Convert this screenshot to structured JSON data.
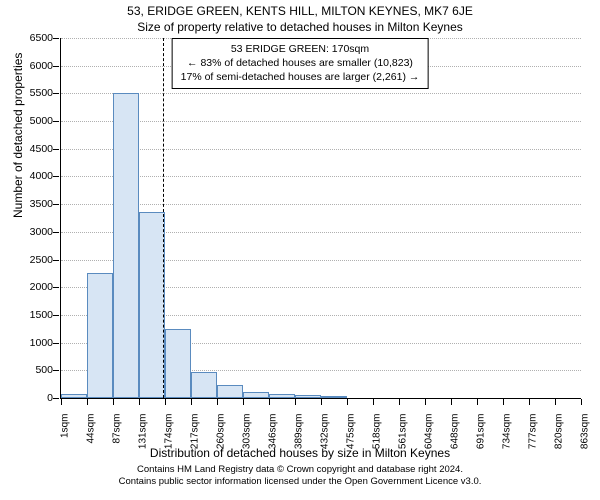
{
  "chart": {
    "type": "histogram",
    "title_main": "53, ERIDGE GREEN, KENTS HILL, MILTON KEYNES, MK7 6JE",
    "title_sub": "Size of property relative to detached houses in Milton Keynes",
    "y_axis_title": "Number of detached properties",
    "x_axis_title": "Distribution of detached houses by size in Milton Keynes",
    "background_color": "#ffffff",
    "bar_fill": "#d7e5f4",
    "bar_stroke": "#5a8bbf",
    "grid_color": "#b0b0b0",
    "title_fontsize": 12,
    "axis_title_fontsize": 12,
    "tick_fontsize": 10.5,
    "ylim": [
      0,
      6500
    ],
    "ytick_step": 500,
    "yticks": [
      0,
      500,
      1000,
      1500,
      2000,
      2500,
      3000,
      3500,
      4000,
      4500,
      5000,
      5500,
      6000,
      6500
    ],
    "x_tick_labels": [
      "1sqm",
      "44sqm",
      "87sqm",
      "131sqm",
      "174sqm",
      "217sqm",
      "260sqm",
      "303sqm",
      "346sqm",
      "389sqm",
      "432sqm",
      "475sqm",
      "518sqm",
      "561sqm",
      "604sqm",
      "648sqm",
      "691sqm",
      "734sqm",
      "777sqm",
      "820sqm",
      "863sqm"
    ],
    "bars": [
      80,
      2250,
      5500,
      3350,
      1250,
      470,
      240,
      110,
      65,
      50,
      45,
      0,
      0,
      0,
      0,
      0,
      0,
      0,
      0,
      0
    ],
    "reference_line_x_sqm": 170,
    "reference_line_style": "dashed",
    "annotation": {
      "line1": "53 ERIDGE GREEN: 170sqm",
      "line2": "← 83% of detached houses are smaller (10,823)",
      "line3": "17% of semi-detached houses are larger (2,261) →"
    },
    "attribution_line1": "Contains HM Land Registry data © Crown copyright and database right 2024.",
    "attribution_line2": "Contains public sector information licensed under the Open Government Licence v3.0."
  }
}
